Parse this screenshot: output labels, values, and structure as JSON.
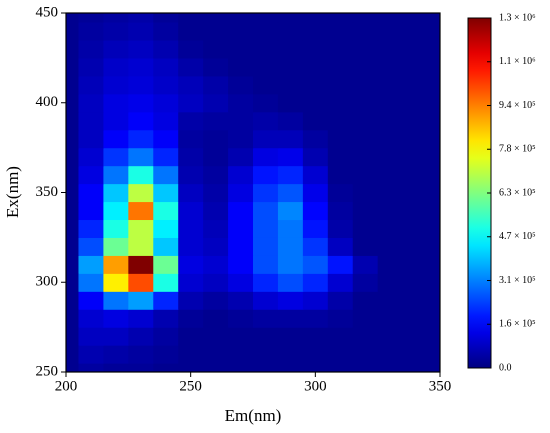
{
  "chart_data": {
    "type": "contour",
    "colormap": "jet",
    "xlabel": "Em(nm)",
    "ylabel": "Ex(nm)",
    "x": [
      200,
      210,
      220,
      230,
      240,
      250,
      260,
      270,
      280,
      290,
      300,
      310,
      320,
      330,
      340,
      350
    ],
    "y": [
      250,
      260,
      270,
      280,
      290,
      300,
      310,
      320,
      330,
      340,
      350,
      360,
      370,
      380,
      390,
      400,
      410,
      420,
      430,
      440,
      450
    ],
    "z": [
      [
        20000,
        40000,
        30000,
        30000,
        20000,
        20000,
        20000,
        20000,
        20000,
        20000,
        20000,
        20000,
        20000,
        20000,
        20000,
        20000
      ],
      [
        20000,
        60000,
        50000,
        40000,
        30000,
        20000,
        20000,
        20000,
        20000,
        20000,
        20000,
        20000,
        20000,
        20000,
        20000,
        20000
      ],
      [
        20000,
        80000,
        80000,
        60000,
        40000,
        20000,
        20000,
        20000,
        20000,
        20000,
        20000,
        20000,
        20000,
        20000,
        20000,
        20000
      ],
      [
        20000,
        100000,
        120000,
        100000,
        60000,
        30000,
        20000,
        30000,
        40000,
        40000,
        40000,
        30000,
        20000,
        20000,
        20000,
        20000
      ],
      [
        20000,
        150000,
        300000,
        350000,
        200000,
        60000,
        40000,
        60000,
        100000,
        120000,
        100000,
        50000,
        20000,
        20000,
        20000,
        20000
      ],
      [
        20000,
        300000,
        800000,
        1000000,
        500000,
        100000,
        80000,
        120000,
        200000,
        250000,
        200000,
        100000,
        40000,
        20000,
        20000,
        20000
      ],
      [
        20000,
        350000,
        900000,
        1250000,
        600000,
        120000,
        100000,
        150000,
        250000,
        300000,
        260000,
        180000,
        60000,
        20000,
        20000,
        20000
      ],
      [
        20000,
        250000,
        600000,
        700000,
        400000,
        100000,
        80000,
        150000,
        250000,
        300000,
        220000,
        80000,
        20000,
        20000,
        20000,
        20000
      ],
      [
        20000,
        200000,
        500000,
        700000,
        450000,
        100000,
        70000,
        150000,
        250000,
        300000,
        180000,
        50000,
        20000,
        20000,
        20000,
        20000
      ],
      [
        20000,
        150000,
        450000,
        950000,
        500000,
        100000,
        60000,
        150000,
        250000,
        320000,
        160000,
        40000,
        20000,
        20000,
        20000,
        20000
      ],
      [
        20000,
        150000,
        400000,
        700000,
        400000,
        80000,
        50000,
        120000,
        220000,
        260000,
        130000,
        30000,
        20000,
        20000,
        20000,
        20000
      ],
      [
        20000,
        120000,
        300000,
        500000,
        300000,
        60000,
        40000,
        100000,
        180000,
        200000,
        100000,
        20000,
        20000,
        20000,
        20000,
        20000
      ],
      [
        20000,
        100000,
        220000,
        300000,
        200000,
        50000,
        30000,
        60000,
        120000,
        130000,
        60000,
        20000,
        20000,
        20000,
        20000,
        20000
      ],
      [
        20000,
        80000,
        150000,
        200000,
        150000,
        40000,
        30000,
        40000,
        70000,
        70000,
        40000,
        20000,
        20000,
        20000,
        20000,
        20000
      ],
      [
        20000,
        80000,
        120000,
        150000,
        120000,
        50000,
        40000,
        40000,
        50000,
        40000,
        20000,
        20000,
        20000,
        20000,
        20000,
        20000
      ],
      [
        20000,
        80000,
        120000,
        130000,
        110000,
        80000,
        60000,
        40000,
        30000,
        20000,
        20000,
        20000,
        20000,
        20000,
        20000,
        20000
      ],
      [
        20000,
        70000,
        100000,
        110000,
        90000,
        70000,
        50000,
        30000,
        20000,
        20000,
        20000,
        20000,
        20000,
        20000,
        20000,
        20000
      ],
      [
        20000,
        60000,
        90000,
        100000,
        80000,
        50000,
        30000,
        20000,
        20000,
        20000,
        20000,
        20000,
        20000,
        20000,
        20000,
        20000
      ],
      [
        20000,
        50000,
        70000,
        80000,
        60000,
        30000,
        20000,
        20000,
        20000,
        20000,
        20000,
        20000,
        20000,
        20000,
        20000,
        20000
      ],
      [
        20000,
        40000,
        50000,
        60000,
        40000,
        20000,
        20000,
        20000,
        20000,
        20000,
        20000,
        20000,
        20000,
        20000,
        20000,
        20000
      ],
      [
        20000,
        30000,
        40000,
        50000,
        30000,
        20000,
        20000,
        20000,
        20000,
        20000,
        20000,
        20000,
        20000,
        20000,
        20000,
        20000
      ]
    ],
    "xlim": [
      200,
      350
    ],
    "xticks": [
      200,
      250,
      300,
      350
    ],
    "ylim": [
      250,
      450
    ],
    "yticks": [
      250,
      300,
      350,
      400,
      450
    ],
    "zlim": [
      0,
      1250000
    ],
    "zticks": [
      {
        "value": 0,
        "label": "0.0"
      },
      {
        "value": 156250,
        "label": "1.6 × 10⁵"
      },
      {
        "value": 312500,
        "label": "3.1 × 10⁵"
      },
      {
        "value": 468750,
        "label": "4.7 × 10⁵"
      },
      {
        "value": 625000,
        "label": "6.3 × 10⁵"
      },
      {
        "value": 781250,
        "label": "7.8 × 10⁵"
      },
      {
        "value": 937500,
        "label": "9.4 × 10⁵"
      },
      {
        "value": 1093750,
        "label": "1.1 × 10⁶"
      },
      {
        "value": 1250000,
        "label": "1.3 × 10⁶"
      }
    ]
  }
}
